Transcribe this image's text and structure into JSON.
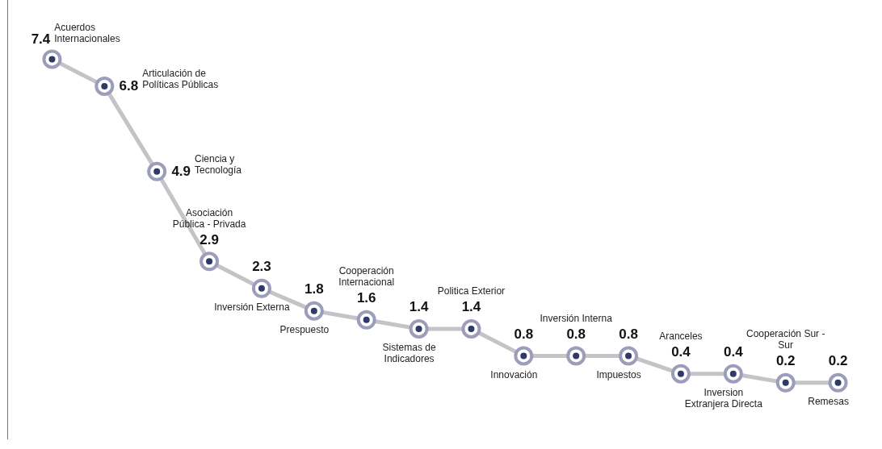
{
  "chart_data": {
    "type": "line",
    "categories": [
      null,
      null,
      null,
      null,
      null,
      null,
      null,
      null,
      null,
      null,
      null,
      null,
      null,
      null,
      null,
      null
    ],
    "annotations": [
      "Acuerdos Internacionales",
      "Articulación de Políticas Públicas",
      "Ciencia y Tecnología",
      "Asociación Pública - Privada",
      "Inversión Externa",
      "Prespuesto",
      "Cooperación Internacional",
      "Sistemas de Indicadores",
      "Politica Exterior",
      "Innovación",
      "Inversión Interna",
      "Impuestos",
      "Aranceles",
      "Inversion Extranjera Directa",
      "Cooperación Sur - Sur",
      "Remesas"
    ],
    "series": [
      {
        "color": "#c3c3c8",
        "values": [
          7.4,
          6.8,
          4.9,
          2.9,
          2.3,
          1.8,
          1.6,
          1.4,
          1.4,
          0.8,
          0.8,
          0.8,
          0.4,
          0.4,
          0.2,
          0.2
        ]
      }
    ],
    "data_labels": true,
    "marker": "circle",
    "line_style": "solid",
    "legend": false,
    "grid": false,
    "tick_labels": false
  }
}
